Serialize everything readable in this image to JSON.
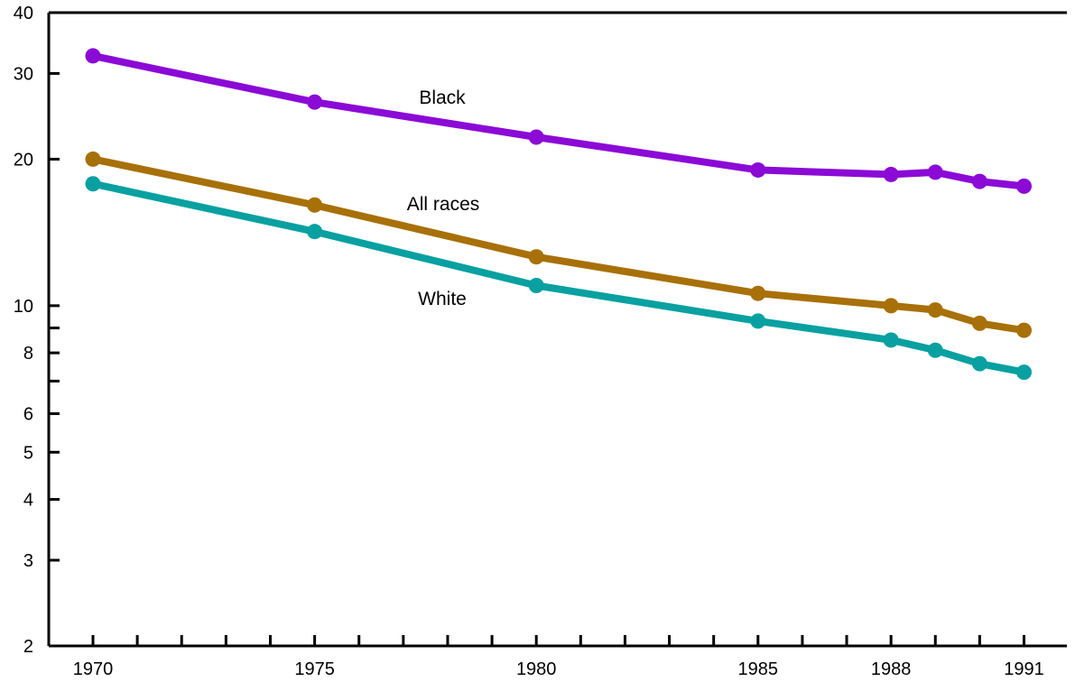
{
  "chart_data": {
    "type": "line",
    "x": [
      1970,
      1975,
      1980,
      1985,
      1988,
      1989,
      1990,
      1991
    ],
    "x_tick_labels": [
      "1970",
      "1975",
      "1980",
      "1985",
      "1988",
      "1991"
    ],
    "y_scale": "log",
    "ylim": [
      2,
      40
    ],
    "y_tick_labels": [
      "2",
      "3",
      "4",
      "5",
      "6",
      "8",
      "10",
      "20",
      "30",
      "40"
    ],
    "series": [
      {
        "name": "Black",
        "color": "#8B0AD6",
        "values": [
          32.6,
          26.2,
          22.2,
          19.0,
          18.6,
          18.8,
          18.0,
          17.6
        ]
      },
      {
        "name": "All races",
        "color": "#A87008",
        "values": [
          20.0,
          16.1,
          12.6,
          10.6,
          10.0,
          9.8,
          9.2,
          8.9
        ]
      },
      {
        "name": "White",
        "color": "#08A0A0",
        "values": [
          17.8,
          14.2,
          11.0,
          9.3,
          8.5,
          8.1,
          7.6,
          7.3
        ]
      }
    ],
    "title": "",
    "xlabel": "",
    "ylabel": "",
    "grid": false,
    "legend": "inline labels"
  }
}
